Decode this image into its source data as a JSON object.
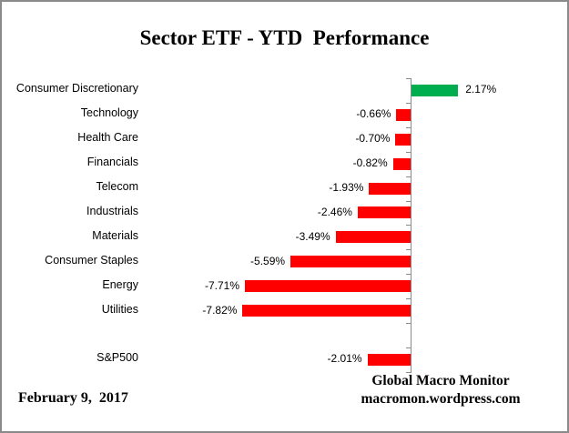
{
  "title": "Sector ETF - YTD  Performance",
  "footer": {
    "date": "February 9,  2017",
    "attribution_line1": "Global Macro Monitor",
    "attribution_line2": "macromon.wordpress.com"
  },
  "colors": {
    "positive": "#00AE50",
    "negative": "#FF0000",
    "axis": "#8a8a8a",
    "border": "#8a8a8a",
    "text": "#000000"
  },
  "chart_data": {
    "type": "bar",
    "orientation": "horizontal",
    "title": "Sector ETF - YTD  Performance",
    "xlabel": "",
    "ylabel": "",
    "xlim": [
      -8.5,
      3
    ],
    "grid": false,
    "legend": null,
    "categories": [
      "Consumer Discretionary",
      "Technology",
      "Health Care",
      "Financials",
      "Telecom",
      "Industrials",
      "Materials",
      "Consumer Staples",
      "Energy",
      "Utilities",
      "",
      "S&P500"
    ],
    "values": [
      2.17,
      -0.66,
      -0.7,
      -0.82,
      -1.93,
      -2.46,
      -3.49,
      -5.59,
      -7.71,
      -7.82,
      null,
      -2.01
    ],
    "value_labels": [
      "2.17%",
      "-0.66%",
      "-0.70%",
      "-0.82%",
      "-1.93%",
      "-2.46%",
      "-3.49%",
      "-5.59%",
      "-7.71%",
      "-7.82%",
      "",
      "-2.01%"
    ]
  }
}
